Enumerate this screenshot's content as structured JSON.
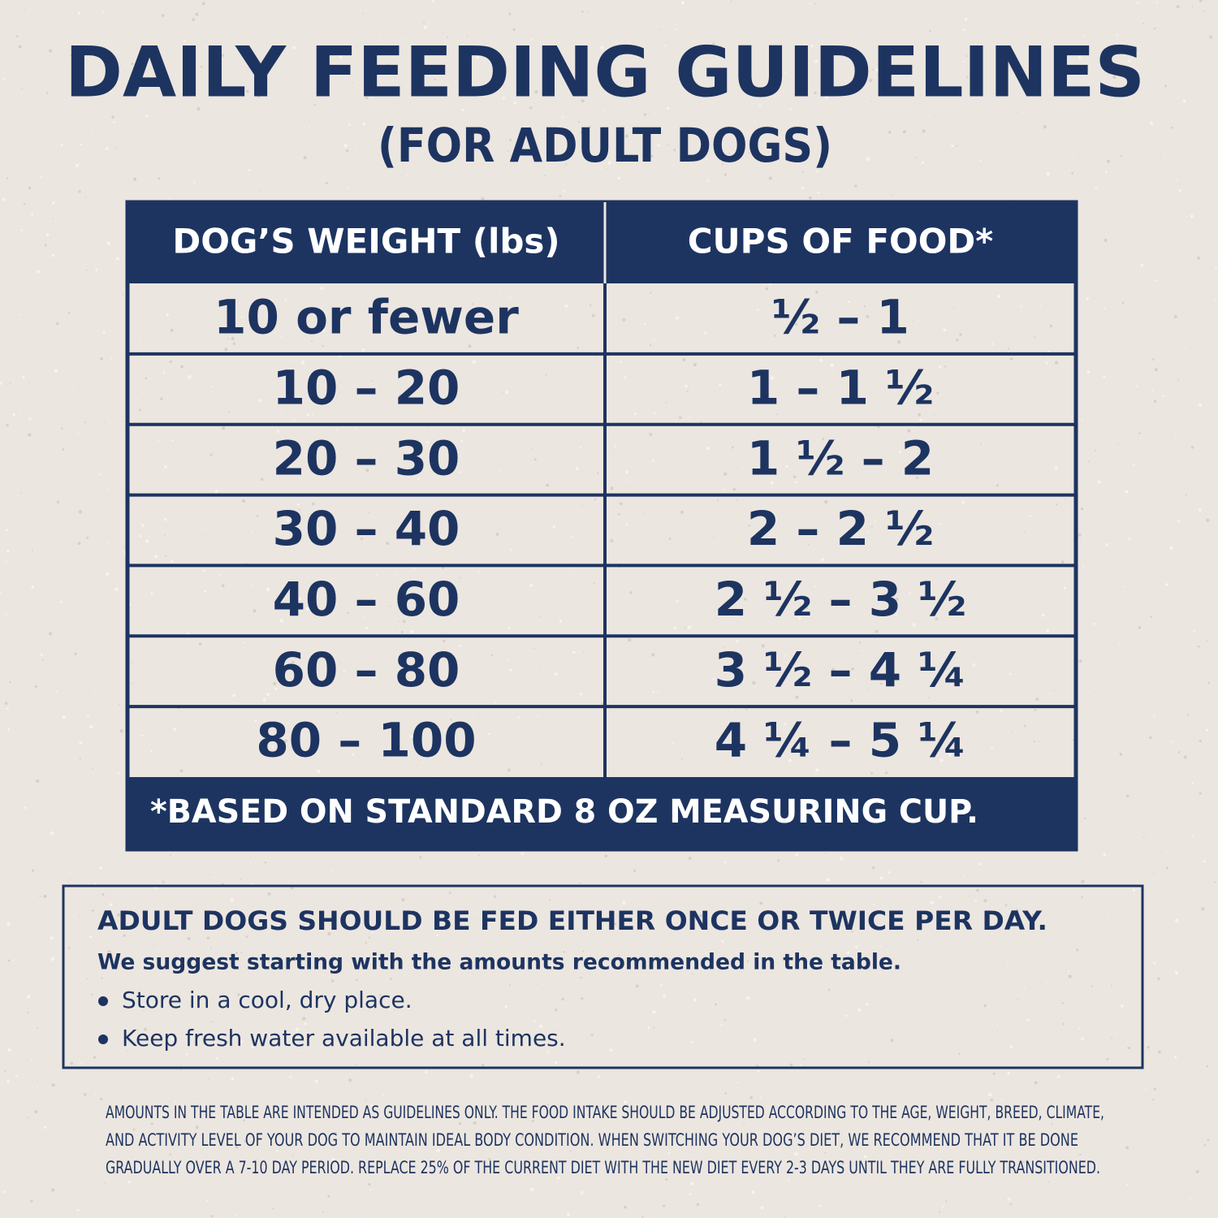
{
  "header": {
    "title": "DAILY FEEDING GUIDELINES",
    "subtitle": "(FOR ADULT DOGS)"
  },
  "table": {
    "columns": [
      "DOG’S WEIGHT (lbs)",
      "CUPS OF FOOD*"
    ],
    "rows": [
      [
        "10 or fewer",
        "½ – 1"
      ],
      [
        "10 – 20",
        "1 – 1 ½"
      ],
      [
        "20 – 30",
        "1 ½ – 2"
      ],
      [
        "30 – 40",
        "2 – 2 ½"
      ],
      [
        "40 – 60",
        "2 ½ – 3 ½"
      ],
      [
        "60 – 80",
        "3 ½ – 4 ¼"
      ],
      [
        "80 – 100",
        "4 ¼ – 5 ¼"
      ]
    ],
    "footnote": "*BASED ON STANDARD 8 OZ MEASURING CUP."
  },
  "note": {
    "heading": "ADULT DOGS SHOULD BE FED EITHER ONCE OR TWICE PER DAY.",
    "subheading": "We suggest starting with the amounts recommended in the table.",
    "bullets": [
      "Store in a cool, dry place.",
      "Keep fresh water available at all times."
    ]
  },
  "fine_print": [
    "AMOUNTS IN THE TABLE ARE INTENDED AS GUIDELINES ONLY. THE FOOD INTAKE SHOULD BE ADJUSTED ACCORDING TO THE AGE, WEIGHT, BREED, CLIMATE,",
    "AND ACTIVITY LEVEL OF YOUR DOG TO MAINTAIN IDEAL BODY CONDITION. WHEN SWITCHING YOUR DOG’S DIET, WE RECOMMEND THAT IT BE DONE",
    "GRADUALLY OVER A 7-10 DAY PERIOD. REPLACE 25% OF THE CURRENT DIET WITH THE NEW DIET EVERY 2-3 DAYS UNTIL THEY ARE FULLY TRANSITIONED."
  ]
}
